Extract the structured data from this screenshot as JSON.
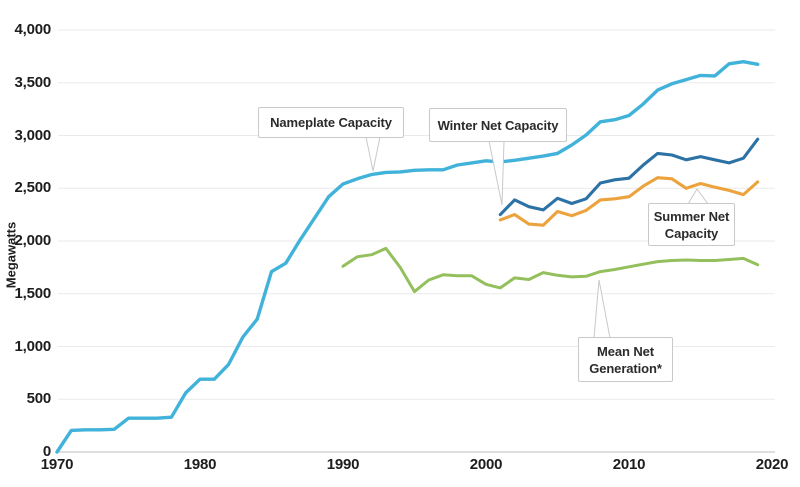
{
  "annotations": {
    "nameplate": {
      "label": "Nameplate Capacity"
    },
    "winter": {
      "label": "Winter Net Capacity"
    },
    "summer": {
      "line1": "Summer Net",
      "line2": "Capacity"
    },
    "mean": {
      "line1": "Mean Net",
      "line2": "Generation*"
    }
  },
  "chart_data": {
    "type": "line",
    "title": "",
    "xlabel": "",
    "ylabel": "Megawatts",
    "xlim": [
      1970,
      2020
    ],
    "ylim": [
      0,
      4000
    ],
    "grid": "horizontal",
    "legend_position": "inline-callouts",
    "x_tick_values": [
      1970,
      1980,
      1990,
      2000,
      2010,
      2020
    ],
    "x_tick_labels": [
      "1970",
      "1980",
      "1990",
      "2000",
      "2010",
      "2020"
    ],
    "y_tick_values": [
      0,
      500,
      1000,
      1500,
      2000,
      2500,
      3000,
      3500,
      4000
    ],
    "y_tick_labels": [
      "0",
      "500",
      "1,000",
      "1,500",
      "2,000",
      "2,500",
      "3,000",
      "3,500",
      "4,000"
    ],
    "series": [
      {
        "name": "Nameplate Capacity",
        "color": "#41b2da",
        "width": 3.4,
        "start_year": 1970,
        "values": [
          0,
          205,
          210,
          210,
          215,
          320,
          320,
          320,
          330,
          560,
          690,
          690,
          830,
          1090,
          1260,
          1710,
          1790,
          2010,
          2215,
          2420,
          2540,
          2590,
          2630,
          2650,
          2655,
          2670,
          2675,
          2675,
          2720,
          2740,
          2760,
          2750,
          2765,
          2785,
          2805,
          2830,
          2910,
          3005,
          3130,
          3150,
          3190,
          3300,
          3430,
          3490,
          3530,
          3570,
          3565,
          3680,
          3700,
          3675
        ]
      },
      {
        "name": "Winter Net Capacity",
        "color": "#2c72a5",
        "width": 3.1,
        "start_year": 2001,
        "values": [
          2250,
          2390,
          2325,
          2295,
          2405,
          2355,
          2400,
          2550,
          2580,
          2595,
          2720,
          2830,
          2815,
          2770,
          2800,
          2770,
          2740,
          2785,
          2965
        ]
      },
      {
        "name": "Summer Net Capacity",
        "color": "#eca23d",
        "width": 3.1,
        "start_year": 2001,
        "values": [
          2200,
          2250,
          2160,
          2150,
          2280,
          2240,
          2290,
          2390,
          2400,
          2420,
          2520,
          2600,
          2590,
          2500,
          2545,
          2510,
          2480,
          2440,
          2560
        ]
      },
      {
        "name": "Mean Net Generation*",
        "color": "#93c05c",
        "width": 3.0,
        "start_year": 1990,
        "values": [
          1760,
          1850,
          1870,
          1930,
          1750,
          1520,
          1630,
          1680,
          1670,
          1670,
          1590,
          1555,
          1650,
          1635,
          1700,
          1675,
          1660,
          1665,
          1710,
          1730,
          1755,
          1780,
          1805,
          1815,
          1820,
          1815,
          1815,
          1825,
          1835,
          1775
        ]
      }
    ]
  }
}
